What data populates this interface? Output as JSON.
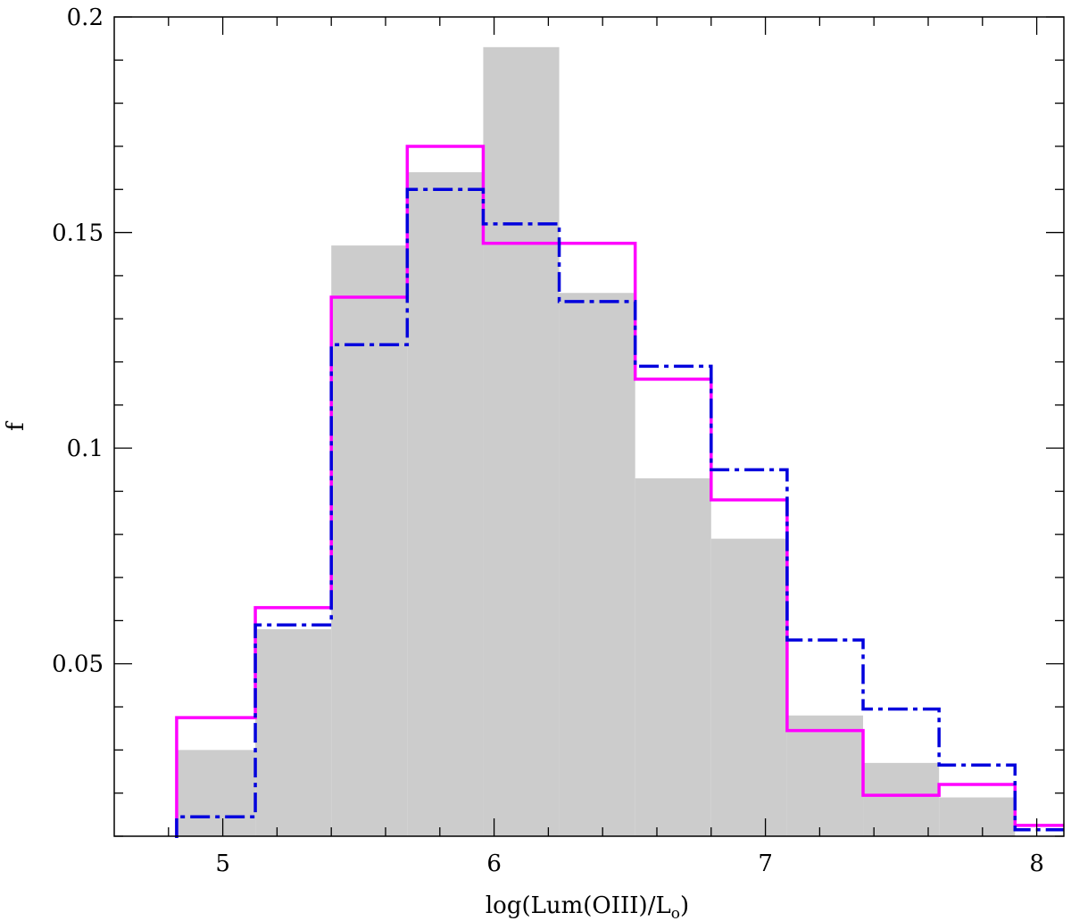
{
  "chart_data": {
    "type": "histogram",
    "xlabel_main": "log(Lum(OIII)/L",
    "xlabel_sub": "o",
    "xlabel_close": ")",
    "ylabel": "f",
    "xlim": [
      4.6,
      8.1
    ],
    "ylim": [
      0.01,
      0.2
    ],
    "xticks": [
      5,
      6,
      7,
      8
    ],
    "xtick_labels": [
      "5",
      "6",
      "7",
      "8"
    ],
    "yticks": [
      0.05,
      0.1,
      0.15,
      0.2
    ],
    "ytick_labels": [
      "0.05",
      "0.1",
      "0.15",
      "0.2"
    ],
    "bin_edges": [
      4.83,
      5.12,
      5.4,
      5.68,
      5.96,
      6.24,
      6.52,
      6.8,
      7.08,
      7.36,
      7.64,
      7.92,
      8.1
    ],
    "series": [
      {
        "style": "filled-gray",
        "color": "#cccccc",
        "values": [
          0.03,
          0.058,
          0.147,
          0.164,
          0.193,
          0.136,
          0.093,
          0.079,
          0.038,
          0.027,
          0.019,
          0.01
        ]
      },
      {
        "style": "solid-line",
        "color": "#ff00ff",
        "values": [
          0.0375,
          0.063,
          0.135,
          0.17,
          0.1475,
          0.1475,
          0.116,
          0.088,
          0.0345,
          0.0195,
          0.022,
          0.0125
        ]
      },
      {
        "style": "dash-dot-line",
        "color": "#0000dd",
        "values": [
          0.0145,
          0.059,
          0.124,
          0.16,
          0.152,
          0.134,
          0.119,
          0.095,
          0.0555,
          0.0395,
          0.0265,
          0.0115
        ]
      }
    ]
  }
}
